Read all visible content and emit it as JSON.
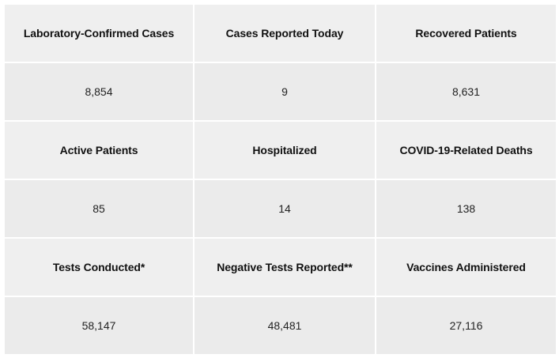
{
  "stats": {
    "rows": [
      {
        "headers": [
          "Laboratory-Confirmed Cases",
          "Cases Reported Today",
          "Recovered Patients"
        ],
        "values": [
          "8,854",
          "9",
          "8,631"
        ]
      },
      {
        "headers": [
          "Active Patients",
          "Hospitalized",
          "COVID-19-Related Deaths"
        ],
        "values": [
          "85",
          "14",
          "138"
        ]
      },
      {
        "headers": [
          "Tests Conducted*",
          "Negative Tests Reported**",
          "Vaccines Administered"
        ],
        "values": [
          "58,147",
          "48,481",
          "27,116"
        ]
      }
    ]
  }
}
